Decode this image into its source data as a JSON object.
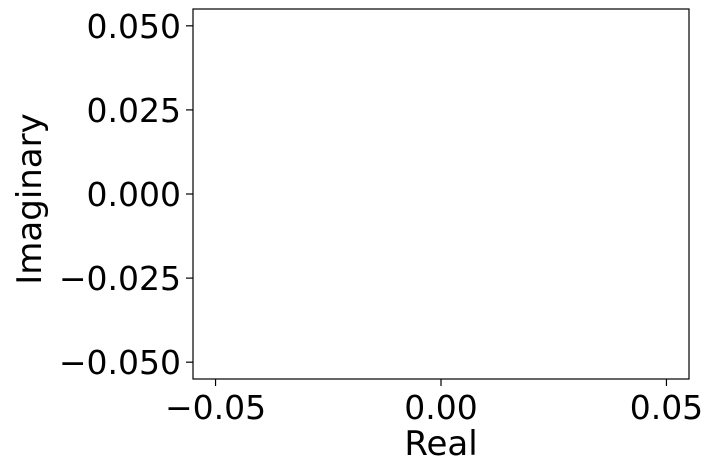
{
  "chart_data": {
    "type": "scatter",
    "title": "",
    "xlabel": "Real",
    "ylabel": "Imaginary",
    "xlim": [
      -0.055,
      0.055
    ],
    "ylim": [
      -0.055,
      0.055
    ],
    "xticks": [
      -0.05,
      0.0,
      0.05
    ],
    "xtick_labels": [
      "−0.05",
      "0.00",
      "0.05"
    ],
    "yticks": [
      -0.05,
      -0.025,
      0.0,
      0.025,
      0.05
    ],
    "ytick_labels": [
      "−0.050",
      "−0.025",
      "0.000",
      "0.025",
      "0.050"
    ],
    "grid": false,
    "legend": "none",
    "series": [],
    "colors": {
      "axes": "#000000",
      "background": "#ffffff"
    }
  }
}
